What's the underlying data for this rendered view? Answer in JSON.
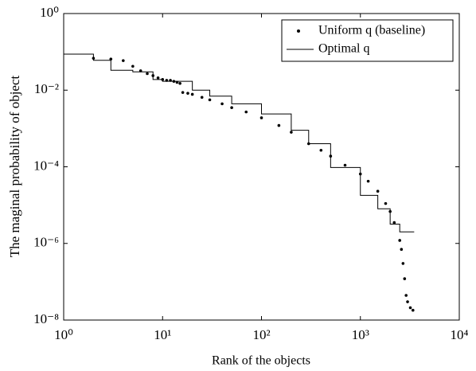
{
  "chart_data": {
    "type": "scatter",
    "xlabel": "Rank of the objects",
    "ylabel": "The maginal probability of object",
    "xscale": "log",
    "yscale": "log",
    "xlim": [
      1,
      10000
    ],
    "ylim": [
      1e-08,
      1
    ],
    "xticks": [
      {
        "value": 1,
        "label": "10⁰"
      },
      {
        "value": 10,
        "label": "10¹"
      },
      {
        "value": 100,
        "label": "10²"
      },
      {
        "value": 1000,
        "label": "10³"
      },
      {
        "value": 10000,
        "label": "10⁴"
      }
    ],
    "yticks": [
      {
        "value": 1e-08,
        "label": "10⁻⁸"
      },
      {
        "value": 1e-06,
        "label": "10⁻⁶"
      },
      {
        "value": 0.0001,
        "label": "10⁻⁴"
      },
      {
        "value": 0.01,
        "label": "10⁻²"
      },
      {
        "value": 1,
        "label": "10⁰"
      }
    ],
    "legend": "upper right",
    "series": [
      {
        "name": "Uniform q (baseline)",
        "color": "#000000",
        "kind": "points",
        "x": [
          2,
          3,
          4,
          5,
          6,
          7,
          8,
          9,
          10,
          11,
          12,
          13,
          14,
          15,
          16,
          18,
          20,
          25,
          30,
          40,
          50,
          70,
          100,
          150,
          200,
          300,
          400,
          500,
          700,
          1000,
          1200,
          1500,
          1800,
          2000,
          2200,
          2500,
          2600,
          2700,
          2800,
          2900,
          3000,
          3200,
          3400
        ],
        "values": [
          0.068,
          0.065,
          0.059,
          0.042,
          0.032,
          0.027,
          0.024,
          0.021,
          0.019,
          0.018,
          0.018,
          0.017,
          0.016,
          0.015,
          0.0087,
          0.0083,
          0.0078,
          0.0065,
          0.0056,
          0.0044,
          0.0035,
          0.0027,
          0.0019,
          0.0012,
          0.0008,
          0.0004,
          0.00027,
          0.00019,
          0.00011,
          6.5e-05,
          4.2e-05,
          2.3e-05,
          1.1e-05,
          6.8e-06,
          3.5e-06,
          1.2e-06,
          7e-07,
          3e-07,
          1.2e-07,
          4.4e-08,
          3e-08,
          2.1e-08,
          1.8e-08
        ]
      },
      {
        "name": "Optimal q",
        "color": "#000000",
        "kind": "line",
        "x": [
          1,
          2,
          3,
          5,
          8,
          10,
          20,
          30,
          50,
          100,
          200,
          300,
          500,
          1000,
          1500,
          2000,
          2500,
          3500
        ],
        "values": [
          0.087,
          0.06,
          0.033,
          0.03,
          0.019,
          0.017,
          0.01,
          0.007,
          0.0044,
          0.0024,
          0.0009,
          0.0004,
          9.6e-05,
          1.8e-05,
          8e-06,
          3.2e-06,
          2e-06,
          2e-06
        ]
      }
    ]
  }
}
